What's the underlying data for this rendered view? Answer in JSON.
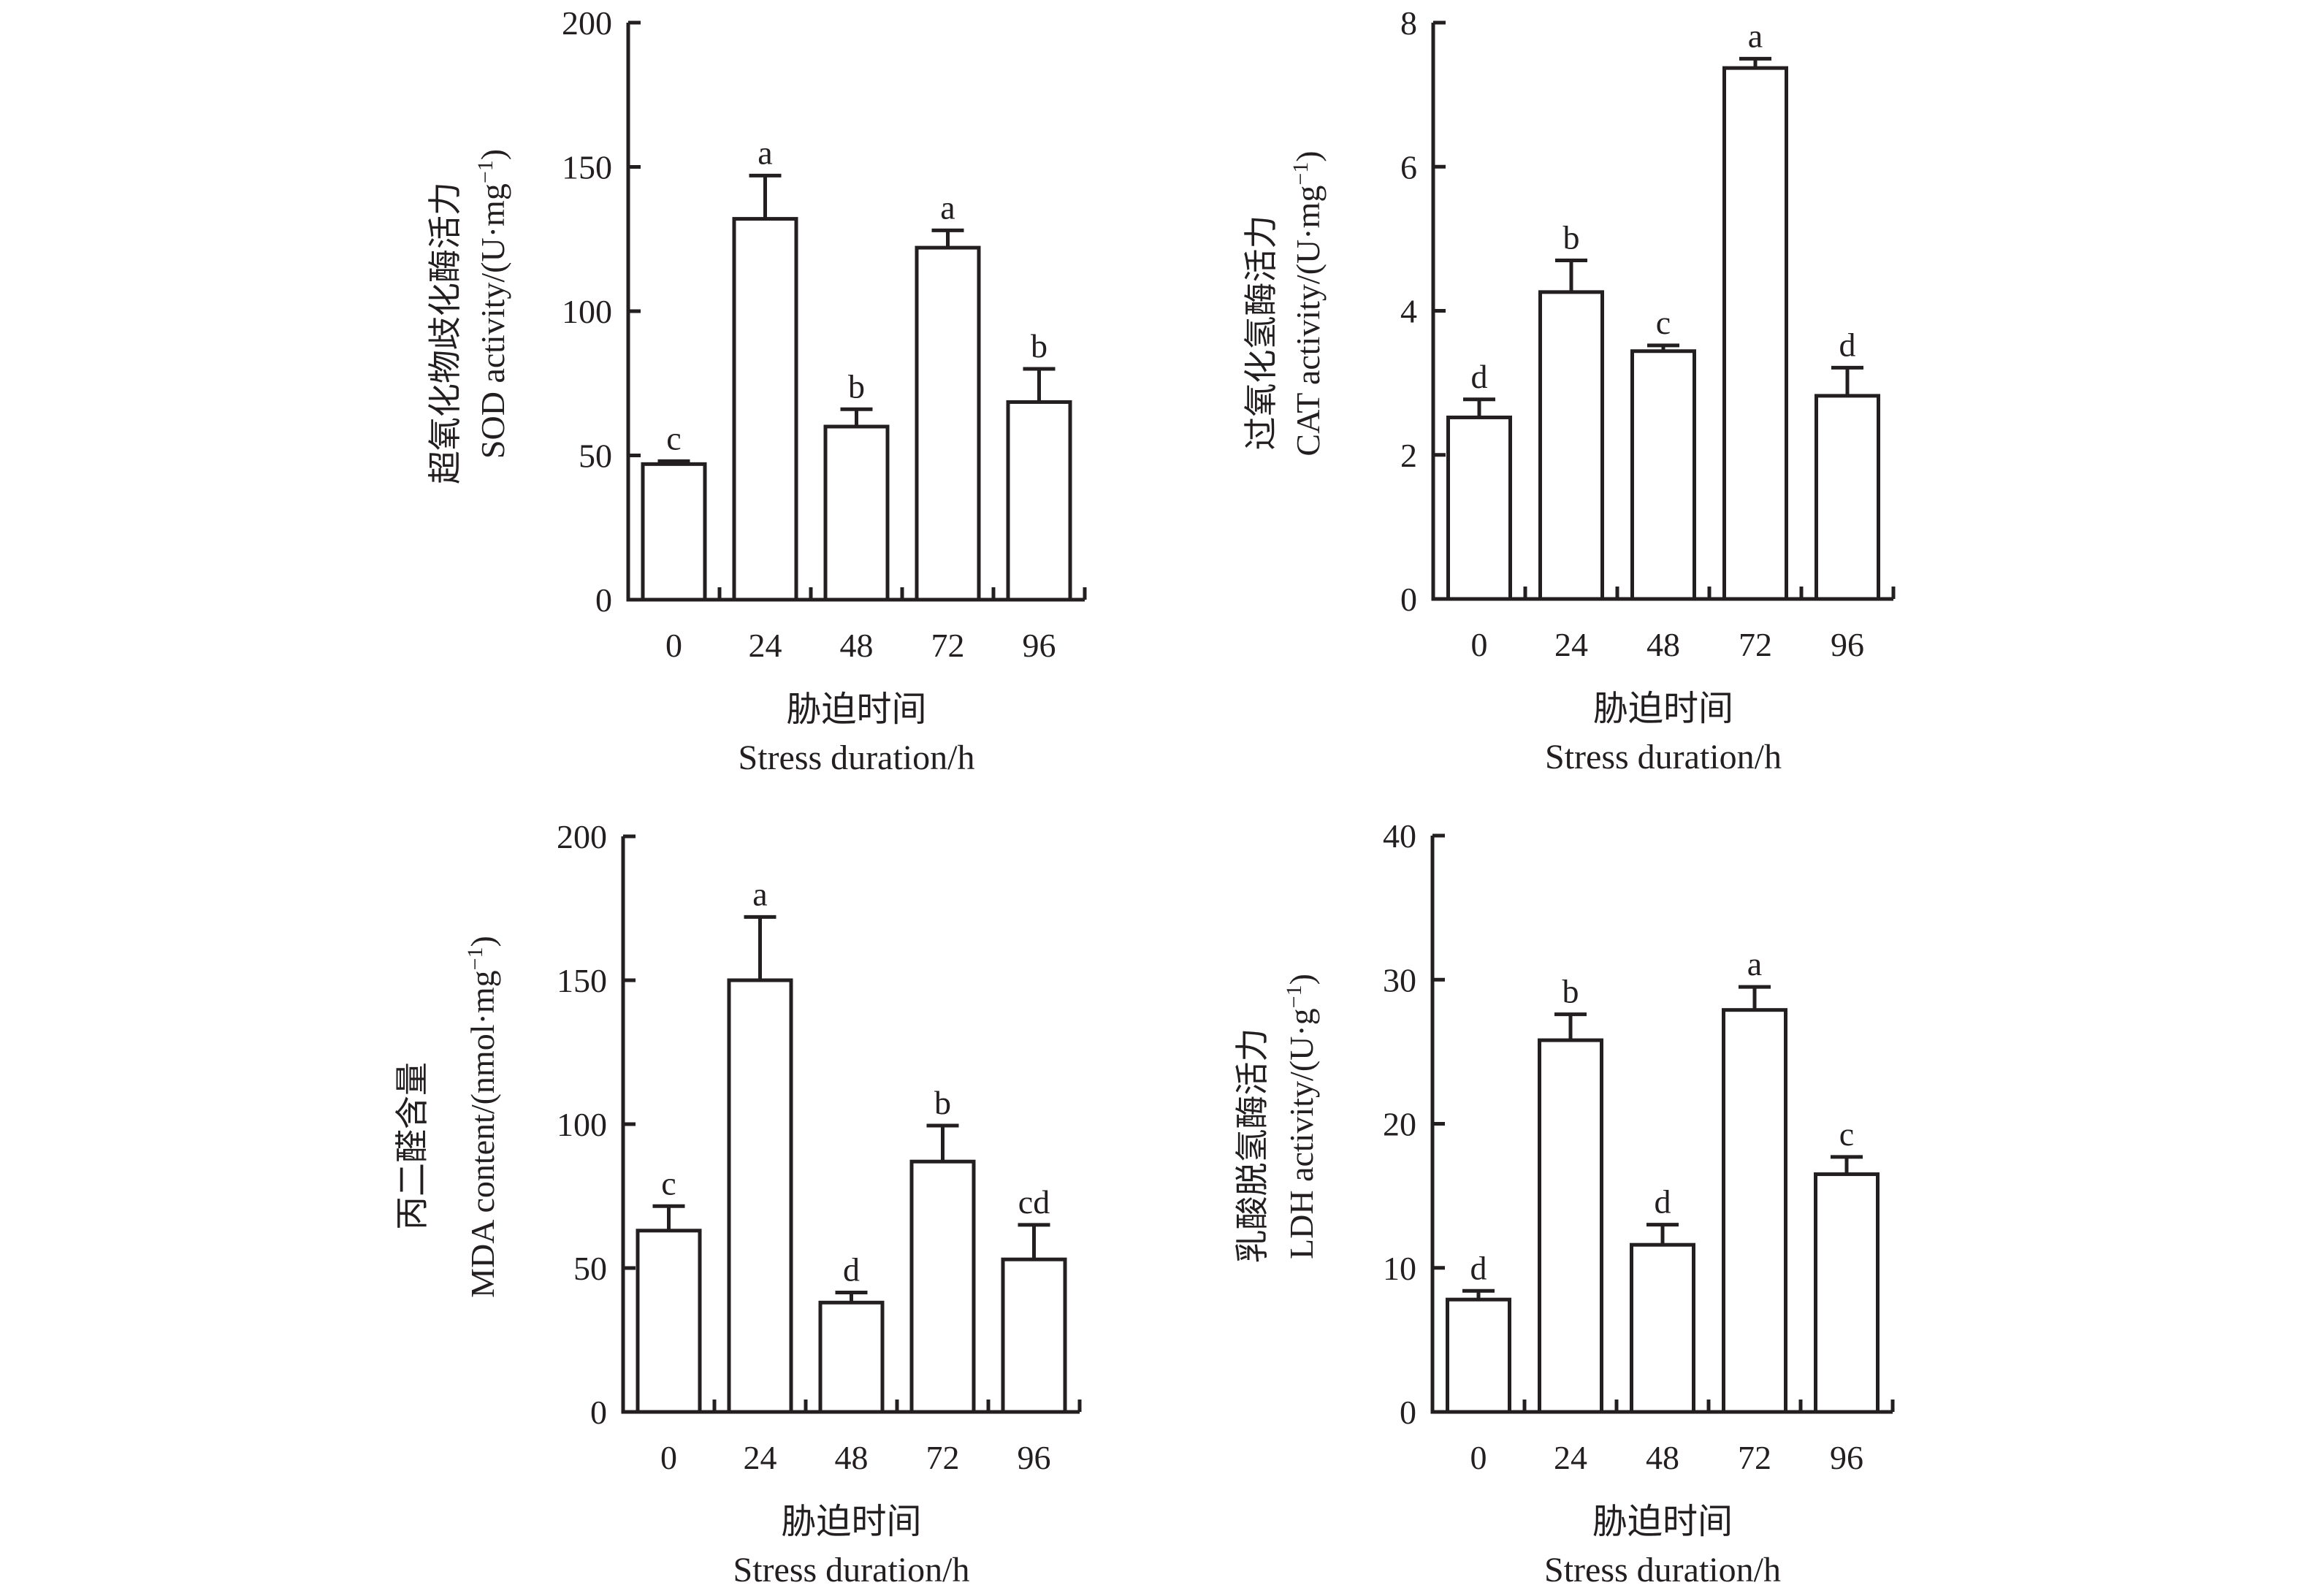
{
  "chart_data": [
    {
      "id": "sod",
      "type": "bar",
      "title": "",
      "categories": [
        "0",
        "24",
        "48",
        "72",
        "96"
      ],
      "values": [
        47,
        132,
        60,
        122,
        68.5
      ],
      "errors_upper": [
        48,
        147,
        66,
        128,
        80
      ],
      "significance": [
        "c",
        "a",
        "b",
        "a",
        "b"
      ],
      "ylim": [
        0,
        200
      ],
      "yticks": [
        0,
        50,
        100,
        150,
        200
      ],
      "ylabel_cn": "超氧化物歧化酶活力",
      "ylabel_en": "SOD activity/(U·mg",
      "ylabel_sup": "−1",
      "ylabel_close": ")",
      "xlabel_cn": "胁迫时间",
      "xlabel_en": "Stress duration/h",
      "grid": false,
      "legend": "none"
    },
    {
      "id": "cat",
      "type": "bar",
      "title": "",
      "categories": [
        "0",
        "24",
        "48",
        "72",
        "96"
      ],
      "values": [
        2.52,
        4.26,
        3.44,
        7.37,
        2.82
      ],
      "errors_upper": [
        2.77,
        4.7,
        3.52,
        7.5,
        3.21
      ],
      "significance": [
        "d",
        "b",
        "c",
        "a",
        "d"
      ],
      "ylim": [
        0,
        8
      ],
      "yticks": [
        0,
        2,
        4,
        6,
        8
      ],
      "ylabel_cn": "过氧化氢酶活力",
      "ylabel_en": "CAT activity/(U·mg",
      "ylabel_sup": "−1",
      "ylabel_close": ")",
      "xlabel_cn": "胁迫时间",
      "xlabel_en": "Stress duration/h",
      "grid": false,
      "legend": "none"
    },
    {
      "id": "mda",
      "type": "bar",
      "title": "",
      "categories": [
        "0",
        "24",
        "48",
        "72",
        "96"
      ],
      "values": [
        63,
        150,
        38,
        87,
        53
      ],
      "errors_upper": [
        71.5,
        172,
        41.5,
        99.5,
        65
      ],
      "significance": [
        "c",
        "a",
        "d",
        "b",
        "cd"
      ],
      "ylim": [
        0,
        200
      ],
      "yticks": [
        0,
        50,
        100,
        150,
        200
      ],
      "ylabel_cn": "丙二醛含量",
      "ylabel_en": "MDA content/(nmol·mg",
      "ylabel_sup": "−1",
      "ylabel_close": ")",
      "xlabel_cn": "胁迫时间",
      "xlabel_en": "Stress duration/h",
      "grid": false,
      "legend": "none"
    },
    {
      "id": "ldh",
      "type": "bar",
      "title": "",
      "categories": [
        "0",
        "24",
        "48",
        "72",
        "96"
      ],
      "values": [
        7.8,
        25.8,
        11.6,
        27.9,
        16.5
      ],
      "errors_upper": [
        8.4,
        27.6,
        13.0,
        29.5,
        17.7
      ],
      "significance": [
        "d",
        "b",
        "d",
        "a",
        "c"
      ],
      "ylim": [
        0,
        40
      ],
      "yticks": [
        0,
        10,
        20,
        30,
        40
      ],
      "ylabel_cn": "乳酸脱氢酶活力",
      "ylabel_en": "LDH activity/(U·g",
      "ylabel_sup": "−1",
      "ylabel_close": ")",
      "xlabel_cn": "胁迫时间",
      "xlabel_en": "Stress duration/h",
      "grid": false,
      "legend": "none"
    }
  ]
}
